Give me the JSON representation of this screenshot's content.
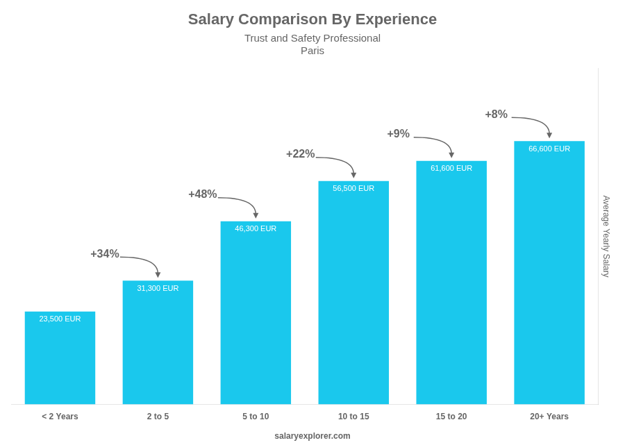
{
  "chart_data": {
    "type": "bar",
    "title": "Salary Comparison By Experience",
    "subtitle": [
      "Trust and Safety Professional",
      "Paris"
    ],
    "ylabel": "Average Yearly Salary",
    "categories": [
      "< 2 Years",
      "2 to 5",
      "5 to 10",
      "10 to 15",
      "15 to 20",
      "20+ Years"
    ],
    "values": [
      23500,
      31300,
      46300,
      56500,
      61600,
      66600
    ],
    "value_labels": [
      "23,500 EUR",
      "31,300 EUR",
      "46,300 EUR",
      "56,500 EUR",
      "61,600 EUR",
      "66,600 EUR"
    ],
    "data_labels": true,
    "annotations": [
      "+34%",
      "+48%",
      "+22%",
      "+9%",
      "+8%"
    ],
    "footer": "salaryexplorer.com",
    "color": "#1ac8ed",
    "ylim": [
      0,
      85000
    ],
    "tick_labels": "x",
    "grid": false
  }
}
